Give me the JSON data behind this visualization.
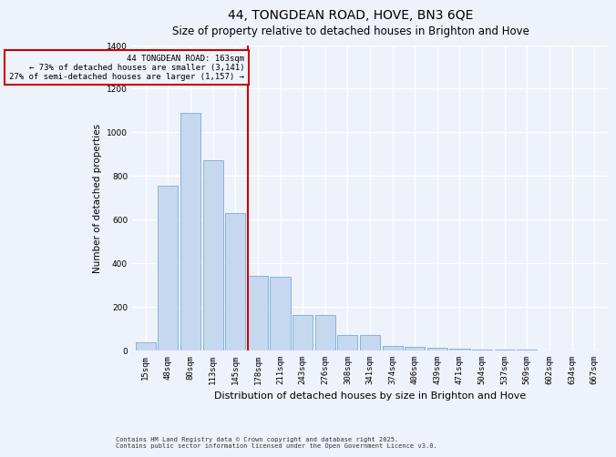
{
  "title": "44, TONGDEAN ROAD, HOVE, BN3 6QE",
  "subtitle": "Size of property relative to detached houses in Brighton and Hove",
  "xlabel": "Distribution of detached houses by size in Brighton and Hove",
  "ylabel": "Number of detached properties",
  "categories": [
    "15sqm",
    "48sqm",
    "80sqm",
    "113sqm",
    "145sqm",
    "178sqm",
    "211sqm",
    "243sqm",
    "276sqm",
    "308sqm",
    "341sqm",
    "374sqm",
    "406sqm",
    "439sqm",
    "471sqm",
    "504sqm",
    "537sqm",
    "569sqm",
    "602sqm",
    "634sqm",
    "667sqm"
  ],
  "values": [
    35,
    755,
    1090,
    870,
    630,
    340,
    335,
    160,
    160,
    70,
    70,
    20,
    15,
    12,
    8,
    3,
    2,
    1,
    0,
    0,
    0
  ],
  "bar_color": "#c5d8f0",
  "bar_edge_color": "#7aadd4",
  "vline_color": "#cc0000",
  "annotation_line1": "44 TONGDEAN ROAD: 163sqm",
  "annotation_line2": "← 73% of detached houses are smaller (3,141)",
  "annotation_line3": "27% of semi-detached houses are larger (1,157) →",
  "annotation_box_color": "#cc0000",
  "ylim": [
    0,
    1400
  ],
  "yticks": [
    0,
    200,
    400,
    600,
    800,
    1000,
    1200,
    1400
  ],
  "footnote1": "Contains HM Land Registry data © Crown copyright and database right 2025.",
  "footnote2": "Contains public sector information licensed under the Open Government Licence v3.0.",
  "background_color": "#eef2fa",
  "plot_background_color": "#eef2fa",
  "grid_color": "#ffffff",
  "title_fontsize": 10,
  "subtitle_fontsize": 8.5,
  "xlabel_fontsize": 8,
  "tick_fontsize": 6.5,
  "ylabel_fontsize": 7.5,
  "annotation_fontsize": 6.5,
  "footnote_fontsize": 5
}
